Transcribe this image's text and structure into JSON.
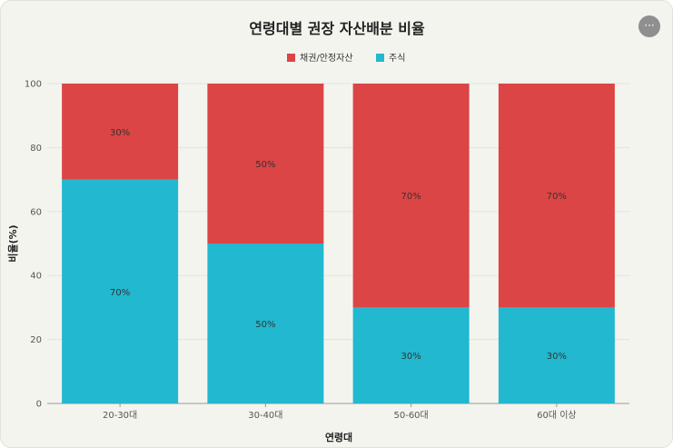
{
  "menu": {
    "icon": "more-horizontal-icon",
    "label": "···"
  },
  "chart_data": {
    "type": "bar",
    "stacked": true,
    "title": "연령대별 권장 자산배분 비율",
    "xlabel": "연령대",
    "ylabel": "비율(%)",
    "ylim": [
      0,
      100
    ],
    "yticks": [
      0,
      20,
      40,
      60,
      80,
      100
    ],
    "grid": true,
    "legend_position": "top",
    "categories": [
      "20-30대",
      "30-40대",
      "50-60대",
      "60대 이상"
    ],
    "series": [
      {
        "name": "주식",
        "values": [
          70,
          50,
          30,
          30
        ],
        "color": "#22b8cf",
        "labels": [
          "70%",
          "50%",
          "30%",
          "30%"
        ]
      },
      {
        "name": "채권/안정자산",
        "values": [
          30,
          50,
          70,
          70
        ],
        "color": "#dc4545",
        "labels": [
          "30%",
          "50%",
          "70%",
          "70%"
        ]
      }
    ],
    "legend_order": [
      1,
      0
    ]
  }
}
